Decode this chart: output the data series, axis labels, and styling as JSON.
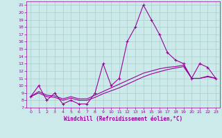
{
  "xlabel": "Windchill (Refroidissement éolien,°C)",
  "background_color": "#cceaea",
  "grid_color": "#aacccc",
  "line_color": "#990099",
  "x_ticks": [
    0,
    1,
    2,
    3,
    4,
    5,
    6,
    7,
    8,
    9,
    10,
    11,
    12,
    13,
    14,
    15,
    16,
    17,
    18,
    19,
    20,
    21,
    22,
    23
  ],
  "y_ticks": [
    7,
    8,
    9,
    10,
    11,
    12,
    13,
    14,
    15,
    16,
    17,
    18,
    19,
    20,
    21
  ],
  "xlim": [
    -0.5,
    23.5
  ],
  "ylim": [
    7,
    21.5
  ],
  "line1_x": [
    0,
    1,
    2,
    3,
    4,
    5,
    6,
    7,
    8,
    9,
    10,
    11,
    12,
    13,
    14,
    15,
    16,
    17,
    18,
    19,
    20,
    21,
    22,
    23
  ],
  "line1_y": [
    8.5,
    10.0,
    8.0,
    9.0,
    7.5,
    8.0,
    7.5,
    7.5,
    9.0,
    13.0,
    10.0,
    11.0,
    16.0,
    18.0,
    21.0,
    19.0,
    17.0,
    14.5,
    13.5,
    13.0,
    11.0,
    13.0,
    12.5,
    11.0
  ],
  "line2_x": [
    0,
    1,
    2,
    3,
    4,
    5,
    6,
    7,
    8,
    9,
    10,
    11,
    12,
    13,
    14,
    15,
    16,
    17,
    18,
    19,
    20,
    21,
    22,
    23
  ],
  "line2_y": [
    8.5,
    9.2,
    8.7,
    8.6,
    8.2,
    8.5,
    8.2,
    8.2,
    8.7,
    9.2,
    9.7,
    10.2,
    10.7,
    11.2,
    11.7,
    12.0,
    12.3,
    12.5,
    12.6,
    12.8,
    11.0,
    11.0,
    11.3,
    11.0
  ],
  "line3_x": [
    0,
    1,
    2,
    3,
    4,
    5,
    6,
    7,
    8,
    9,
    10,
    11,
    12,
    13,
    14,
    15,
    16,
    17,
    18,
    19,
    20,
    21,
    22,
    23
  ],
  "line3_y": [
    8.5,
    9.0,
    8.5,
    8.4,
    8.0,
    8.3,
    8.0,
    8.0,
    8.4,
    8.9,
    9.3,
    9.7,
    10.2,
    10.7,
    11.2,
    11.6,
    11.9,
    12.2,
    12.4,
    12.6,
    11.0,
    11.0,
    11.2,
    11.0
  ]
}
